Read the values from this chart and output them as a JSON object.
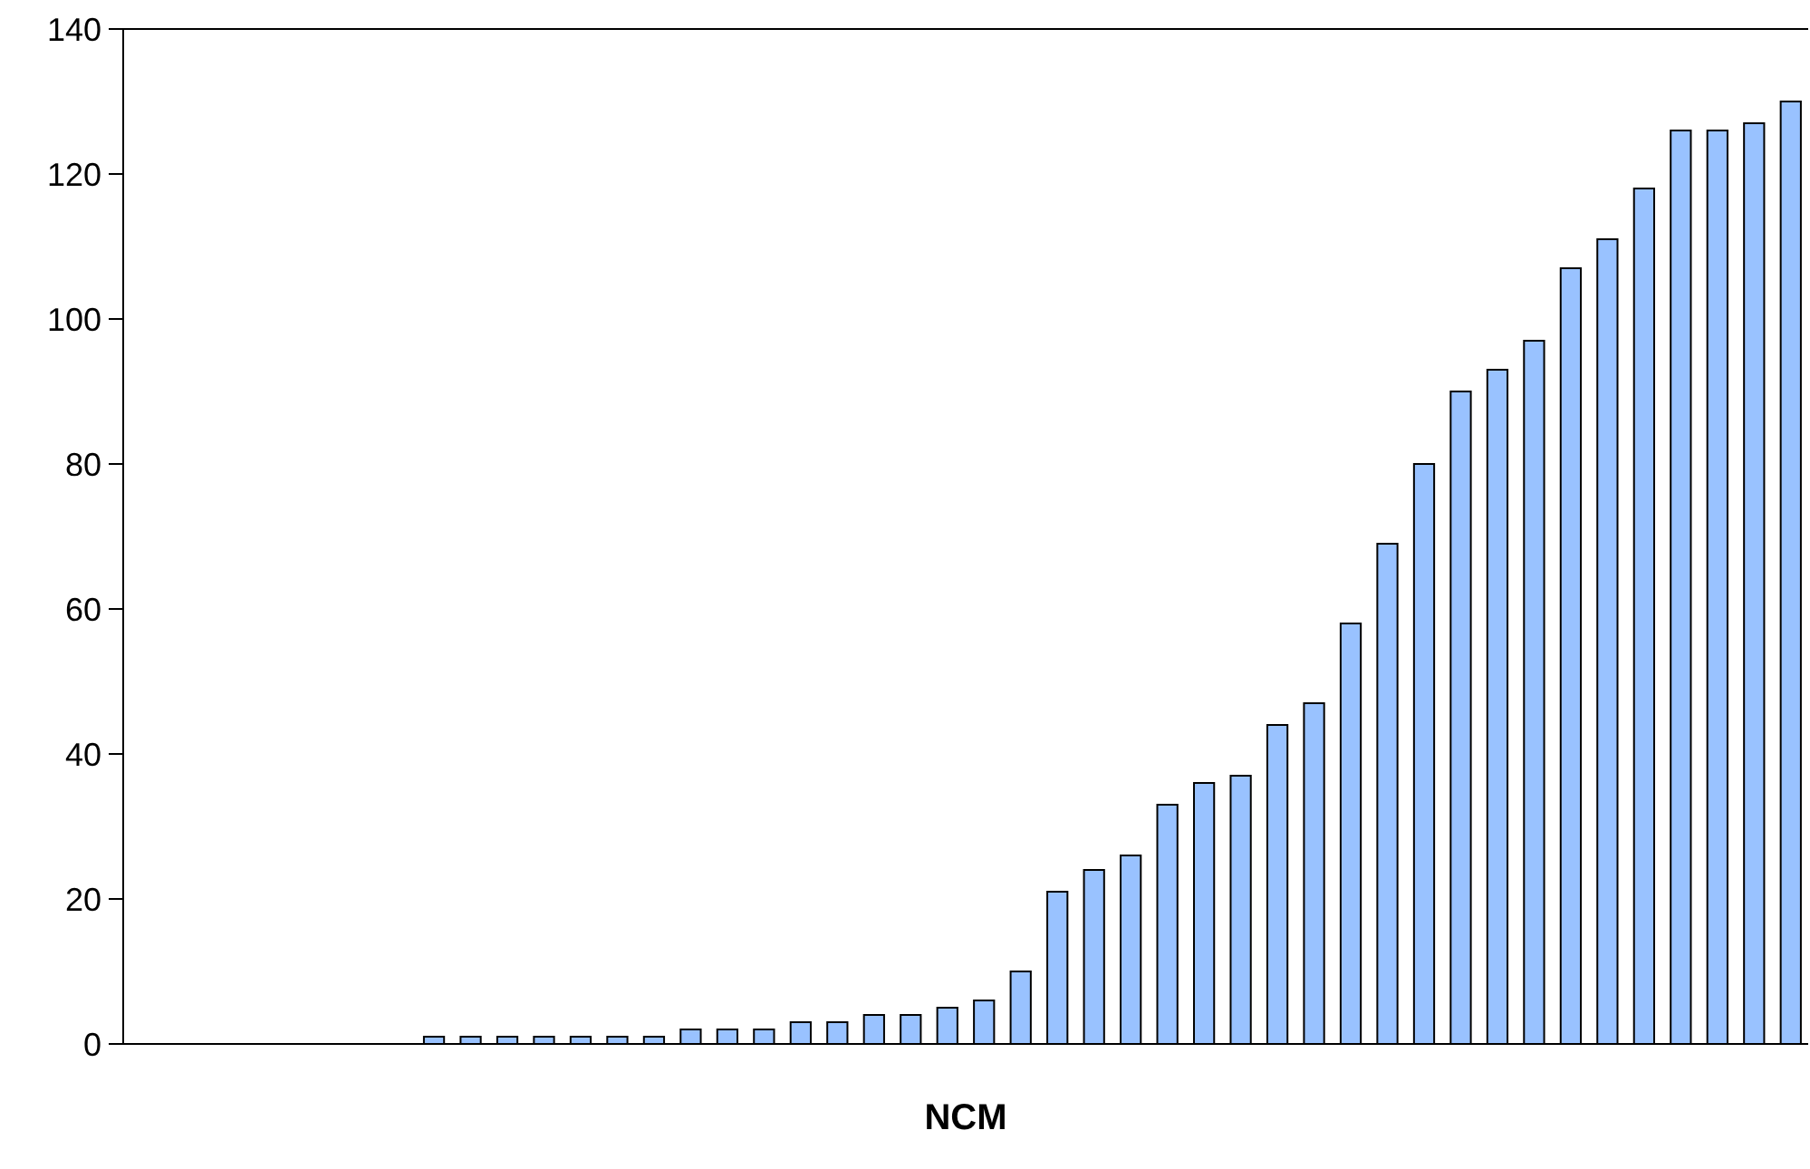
{
  "chart_data": {
    "type": "bar",
    "xlabel": "NCM",
    "categories": [
      null,
      null,
      null,
      null,
      null,
      null,
      null,
      null,
      null,
      null,
      null,
      null,
      null,
      null,
      null,
      null,
      null,
      null,
      null,
      null,
      null,
      null,
      null,
      null,
      null,
      null,
      null,
      null,
      null,
      null,
      null,
      null,
      null,
      null,
      null,
      null,
      null,
      null,
      null,
      null,
      null,
      null,
      null,
      null,
      null,
      null
    ],
    "values": [
      null,
      null,
      null,
      null,
      null,
      null,
      null,
      null,
      1,
      1,
      1,
      1,
      1,
      1,
      1,
      2,
      2,
      2,
      3,
      3,
      4,
      4,
      5,
      6,
      10,
      21,
      24,
      26,
      33,
      36,
      37,
      44,
      47,
      58,
      69,
      80,
      90,
      93,
      97,
      107,
      111,
      118,
      126,
      126,
      127,
      130
    ],
    "color": "#99c2ff",
    "ylim": [
      0,
      140
    ],
    "yticks": [
      0,
      20,
      40,
      60,
      80,
      100,
      120,
      140
    ],
    "grid": false
  }
}
